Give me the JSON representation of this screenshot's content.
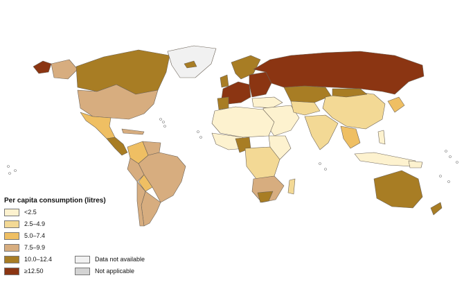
{
  "legend": {
    "title": "Per capita consumption (litres)",
    "items": [
      {
        "label": "<2.5",
        "color": "#fdf2cf"
      },
      {
        "label": "2.5–4.9",
        "color": "#f3d995"
      },
      {
        "label": "5.0–7.4",
        "color": "#efbf63"
      },
      {
        "label": "7.5–9.9",
        "color": "#d7ad7f"
      },
      {
        "label": "10.0–12.4",
        "color": "#a87d24"
      },
      {
        "label": "≥12.50",
        "color": "#8b3512"
      }
    ],
    "extra": [
      {
        "label": "Data not available",
        "color": "#f1f1f1"
      },
      {
        "label": "Not applicable",
        "color": "#d3d3d3"
      }
    ]
  }
}
